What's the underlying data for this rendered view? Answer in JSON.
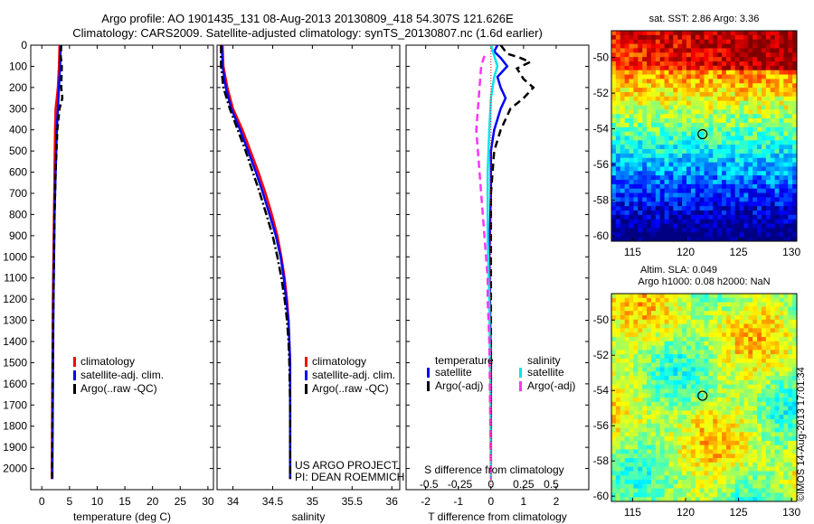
{
  "header": {
    "line1": "Argo profile: AO 1901435_131 08-Aug-2013 20130809_418 54.307S 121.626E",
    "line2": "Climatology: CARS2009. Satellite-adjusted climatology: synTS_20130807.nc (1.6d earlier)"
  },
  "colors": {
    "climatology": "#ff0000",
    "satellite_adj": "#0000ff",
    "argo": "#000000",
    "sal_satellite": "#00e5ee",
    "sal_argo": "#ff33ff"
  },
  "chart_data": [
    {
      "id": "temp",
      "type": "line",
      "xlabel": "temperature (deg C)",
      "ylabel": "",
      "xlim": [
        -2,
        31
      ],
      "ylim": [
        2100,
        0
      ],
      "xticks": [
        0,
        5,
        10,
        15,
        20,
        25,
        30
      ],
      "yticks": [
        0,
        100,
        200,
        300,
        400,
        500,
        600,
        700,
        800,
        900,
        1000,
        1100,
        1200,
        1300,
        1400,
        1500,
        1600,
        1700,
        1800,
        1900,
        2000
      ],
      "legend": [
        "climatology",
        "satellite-adj. clim.",
        "Argo(..raw -QC)"
      ],
      "series": [
        {
          "name": "climatology",
          "color": "#ff0000",
          "dash": "",
          "points": [
            [
              3.2,
              0
            ],
            [
              3.1,
              100
            ],
            [
              2.9,
              200
            ],
            [
              2.7,
              250
            ],
            [
              2.5,
              300
            ],
            [
              2.4,
              400
            ],
            [
              2.3,
              600
            ],
            [
              2.2,
              800
            ],
            [
              2.1,
              1000
            ],
            [
              2.0,
              1200
            ],
            [
              1.95,
              1400
            ],
            [
              1.9,
              1600
            ],
            [
              1.85,
              1800
            ],
            [
              1.8,
              2000
            ],
            [
              1.8,
              2050
            ]
          ]
        },
        {
          "name": "satellite-adj. clim.",
          "color": "#0000ff",
          "dash": "",
          "points": [
            [
              3.4,
              0
            ],
            [
              3.3,
              100
            ],
            [
              3.1,
              200
            ],
            [
              2.9,
              300
            ],
            [
              2.7,
              400
            ],
            [
              2.5,
              600
            ],
            [
              2.3,
              800
            ],
            [
              2.2,
              1000
            ],
            [
              2.1,
              1200
            ],
            [
              2.05,
              1400
            ],
            [
              2.0,
              1600
            ],
            [
              1.95,
              1800
            ],
            [
              1.9,
              2000
            ],
            [
              1.9,
              2050
            ]
          ]
        },
        {
          "name": "Argo(..raw -QC)",
          "color": "#000000",
          "dash": "7,4",
          "points": [
            [
              3.5,
              0
            ],
            [
              3.4,
              50
            ],
            [
              3.6,
              100
            ],
            [
              3.5,
              200
            ],
            [
              3.7,
              250
            ],
            [
              3.2,
              300
            ],
            [
              2.8,
              400
            ],
            [
              2.5,
              600
            ],
            [
              2.3,
              800
            ],
            [
              2.2,
              1000
            ],
            [
              2.1,
              1200
            ],
            [
              2.0,
              1400
            ],
            [
              1.95,
              1600
            ],
            [
              1.9,
              1800
            ],
            [
              1.85,
              2000
            ],
            [
              1.85,
              2050
            ]
          ]
        }
      ]
    },
    {
      "id": "sal",
      "type": "line",
      "xlabel": "salinity",
      "ylabel": "",
      "xlim": [
        33.8,
        36.1
      ],
      "ylim": [
        2100,
        0
      ],
      "xticks": [
        34,
        34.5,
        35,
        35.5,
        36
      ],
      "xticklabels": [
        "34",
        "34.5",
        "35",
        "35.5",
        "36"
      ],
      "legend": [
        "climatology",
        "satellite-adj. clim.",
        "Argo(..raw -QC)"
      ],
      "annotation": [
        "US ARGO PROJECT",
        "PI: DEAN ROEMMICH"
      ],
      "series": [
        {
          "name": "climatology",
          "color": "#ff0000",
          "dash": "",
          "points": [
            [
              33.87,
              0
            ],
            [
              33.88,
              100
            ],
            [
              33.93,
              200
            ],
            [
              34.0,
              300
            ],
            [
              34.12,
              400
            ],
            [
              34.22,
              500
            ],
            [
              34.32,
              600
            ],
            [
              34.41,
              700
            ],
            [
              34.49,
              800
            ],
            [
              34.56,
              900
            ],
            [
              34.61,
              1000
            ],
            [
              34.65,
              1100
            ],
            [
              34.68,
              1200
            ],
            [
              34.7,
              1300
            ],
            [
              34.71,
              1400
            ],
            [
              34.72,
              1500
            ],
            [
              34.72,
              1800
            ],
            [
              34.72,
              2050
            ]
          ]
        },
        {
          "name": "satellite-adj. clim.",
          "color": "#0000ff",
          "dash": "",
          "points": [
            [
              33.86,
              0
            ],
            [
              33.87,
              100
            ],
            [
              33.91,
              200
            ],
            [
              33.98,
              300
            ],
            [
              34.09,
              400
            ],
            [
              34.19,
              500
            ],
            [
              34.29,
              600
            ],
            [
              34.38,
              700
            ],
            [
              34.46,
              800
            ],
            [
              34.54,
              900
            ],
            [
              34.6,
              1000
            ],
            [
              34.64,
              1100
            ],
            [
              34.67,
              1200
            ],
            [
              34.7,
              1300
            ],
            [
              34.71,
              1400
            ],
            [
              34.72,
              1500
            ],
            [
              34.72,
              1800
            ],
            [
              34.72,
              2050
            ]
          ]
        },
        {
          "name": "Argo(..raw -QC)",
          "color": "#000000",
          "dash": "9,3,2,3",
          "points": [
            [
              33.85,
              0
            ],
            [
              33.85,
              100
            ],
            [
              33.88,
              200
            ],
            [
              33.96,
              300
            ],
            [
              34.06,
              400
            ],
            [
              34.16,
              500
            ],
            [
              34.25,
              600
            ],
            [
              34.34,
              700
            ],
            [
              34.42,
              800
            ],
            [
              34.5,
              900
            ],
            [
              34.56,
              1000
            ],
            [
              34.61,
              1100
            ],
            [
              34.65,
              1200
            ],
            [
              34.68,
              1300
            ],
            [
              34.7,
              1400
            ],
            [
              34.71,
              1500
            ],
            [
              34.72,
              1700
            ],
            [
              34.72,
              2050
            ]
          ]
        }
      ]
    },
    {
      "id": "diff",
      "type": "line",
      "xlabel": "T difference from climatology",
      "top_xlabel": "S difference from climatology",
      "xlim": [
        -2.6,
        3.0
      ],
      "ylim": [
        2100,
        0
      ],
      "xticks": [
        -2,
        -1,
        0,
        1,
        2
      ],
      "top_xticklabels": [
        "-0.5",
        "-0.25",
        "0",
        "0.25",
        "0.5"
      ],
      "legend_temperature": {
        "title": "temperature",
        "items": [
          "satellite",
          "Argo(-adj)"
        ]
      },
      "legend_salinity": {
        "title": "salinity",
        "items": [
          "satellite",
          "Argo(-adj)"
        ]
      },
      "series": [
        {
          "name": "temperature satellite",
          "color": "#0000ff",
          "dash": "",
          "points": [
            [
              0.2,
              0
            ],
            [
              0.1,
              30
            ],
            [
              0.3,
              60
            ],
            [
              0.4,
              80
            ],
            [
              0.5,
              100
            ],
            [
              0.2,
              150
            ],
            [
              0.3,
              200
            ],
            [
              0.45,
              250
            ],
            [
              0.3,
              300
            ],
            [
              0.1,
              400
            ],
            [
              0.0,
              500
            ],
            [
              0.0,
              700
            ],
            [
              -0.05,
              1000
            ],
            [
              0.0,
              1500
            ],
            [
              0.0,
              2000
            ],
            [
              0.0,
              2050
            ]
          ]
        },
        {
          "name": "temperature Argo(-adj)",
          "color": "#000000",
          "dash": "8,5",
          "points": [
            [
              0.3,
              0
            ],
            [
              0.5,
              40
            ],
            [
              0.9,
              60
            ],
            [
              1.2,
              80
            ],
            [
              0.8,
              110
            ],
            [
              1.0,
              160
            ],
            [
              1.3,
              200
            ],
            [
              1.0,
              250
            ],
            [
              0.6,
              300
            ],
            [
              0.3,
              400
            ],
            [
              0.1,
              500
            ],
            [
              0.0,
              700
            ],
            [
              0.0,
              1500
            ],
            [
              0.0,
              2050
            ]
          ]
        },
        {
          "name": "salinity satellite",
          "color": "#00e5ee",
          "dash": "",
          "points": [
            [
              0.0,
              0
            ],
            [
              0.1,
              50
            ],
            [
              0.2,
              100
            ],
            [
              0.1,
              150
            ],
            [
              0.0,
              250
            ],
            [
              -0.05,
              400
            ],
            [
              -0.1,
              600
            ],
            [
              -0.1,
              900
            ],
            [
              -0.05,
              1200
            ],
            [
              -0.02,
              1600
            ],
            [
              0.0,
              2050
            ]
          ]
        },
        {
          "name": "salinity Argo(-adj)",
          "color": "#ff33ff",
          "dash": "8,5",
          "points": [
            [
              -0.2,
              50
            ],
            [
              -0.3,
              100
            ],
            [
              -0.35,
              200
            ],
            [
              -0.4,
              300
            ],
            [
              -0.45,
              400
            ],
            [
              -0.4,
              500
            ],
            [
              -0.35,
              600
            ],
            [
              -0.3,
              700
            ],
            [
              -0.25,
              800
            ],
            [
              -0.2,
              900
            ],
            [
              -0.15,
              1000
            ],
            [
              -0.1,
              1100
            ],
            [
              -0.1,
              1200
            ],
            [
              -0.05,
              1400
            ],
            [
              0.0,
              2050
            ]
          ]
        }
      ]
    },
    {
      "id": "sst_map",
      "type": "heatmap",
      "title": "sat. SST: 2.86 Argo: 3.36",
      "xlim": [
        113,
        130.5
      ],
      "ylim": [
        -60.3,
        -48.5
      ],
      "xticks": [
        115,
        120,
        125,
        130
      ],
      "yticks": [
        -50,
        -52,
        -54,
        -56,
        -58,
        -60
      ],
      "argo_position": [
        121.6,
        -54.3
      ]
    },
    {
      "id": "sla_map",
      "type": "heatmap",
      "title_line1": "Altim. SLA: 0.049",
      "title_line2": "Argo h1000: 0.08 h2000: NaN",
      "xlim": [
        113,
        130.5
      ],
      "ylim": [
        -60.3,
        -48.5
      ],
      "xticks": [
        115,
        120,
        125,
        130
      ],
      "yticks": [
        -50,
        -52,
        -54,
        -56,
        -58,
        -60
      ],
      "argo_position": [
        121.6,
        -54.3
      ]
    }
  ],
  "footer": {
    "stamp": "©IMOS 14-Aug-2013 17:01:34"
  }
}
